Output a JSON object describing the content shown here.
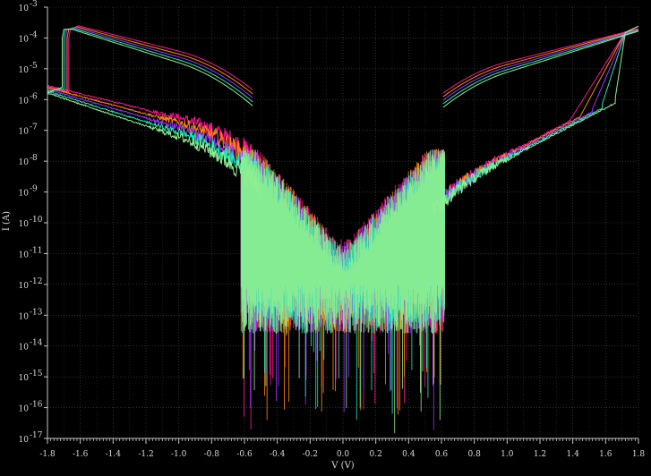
{
  "chart_data": {
    "type": "line",
    "title": "",
    "xlabel": "V (V)",
    "ylabel": "I (A)",
    "xlim": [
      -1.8,
      1.8
    ],
    "ylim_log10": [
      -17,
      -3
    ],
    "y_scale": "log",
    "x_ticks": [
      -1.8,
      -1.6,
      -1.4,
      -1.2,
      -1.0,
      -0.8,
      -0.6,
      -0.4,
      -0.2,
      0.0,
      0.2,
      0.4,
      0.6,
      0.8,
      1.0,
      1.2,
      1.4,
      1.6,
      1.8
    ],
    "x_tick_labels": [
      "-1.8",
      "-1.6",
      "-1.4",
      "-1.2",
      "-1.0",
      "-0.8",
      "-0.6",
      "-0.4",
      "-0.2",
      "0.0",
      "0.2",
      "0.4",
      "0.6",
      "0.8",
      "1.0",
      "1.2",
      "1.4",
      "1.6",
      "1.8"
    ],
    "y_ticks_exp": [
      -3,
      -4,
      -5,
      -6,
      -7,
      -8,
      -9,
      -10,
      -11,
      -12,
      -13,
      -14,
      -15,
      -16,
      -17
    ],
    "grid": true,
    "background": "#000000",
    "series": [
      {
        "color": "#ff1493",
        "set_v": 1.38,
        "reset_v": -1.66,
        "width": 1.0
      },
      {
        "color": "#ff8c00",
        "set_v": 1.45,
        "reset_v": -1.67,
        "width": 0.95
      },
      {
        "color": "#9b30ff",
        "set_v": 1.52,
        "reset_v": -1.68,
        "width": 0.9
      },
      {
        "color": "#1de9b6",
        "set_v": 1.58,
        "reset_v": -1.69,
        "width": 0.85
      },
      {
        "color": "#90ee90",
        "set_v": 1.66,
        "reset_v": -1.7,
        "width": 0.8
      }
    ],
    "hrs_current_at_1_8V": 3e-06,
    "lrs_current_at_1_8V": 0.0002,
    "noise_floor": 1e-12
  }
}
